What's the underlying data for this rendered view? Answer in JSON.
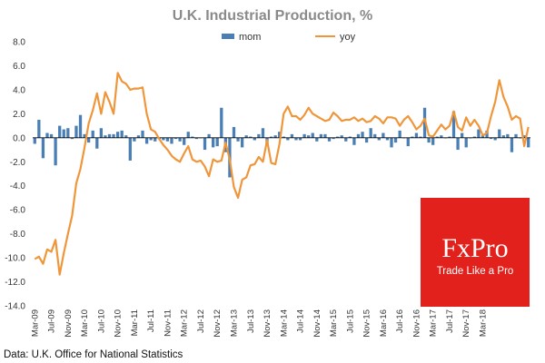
{
  "chart_data": {
    "type": "bar+line",
    "title": "U.K. Industrial Production, %",
    "source": "Data: U.K. Office for National Statistics",
    "ylim": [
      -14,
      8
    ],
    "yticks": [
      "8.0",
      "6.0",
      "4.0",
      "2.0",
      "0.0",
      "-2.0",
      "-4.0",
      "-6.0",
      "-8.0",
      "-10.0",
      "-12.0",
      "-14.0"
    ],
    "grid": false,
    "legend_position": "top-center",
    "x_start": "Mar-09",
    "xtick_labels": [
      "Mar-09",
      "Jul-09",
      "Nov-09",
      "Mar-10",
      "Jul-10",
      "Nov-10",
      "Mar-11",
      "Jul-11",
      "Nov-11",
      "Mar-12",
      "Jul-12",
      "Nov-12",
      "Mar-13",
      "Jul-13",
      "Nov-13",
      "Mar-14",
      "Jul-14",
      "Nov-14",
      "Mar-15",
      "Jul-15",
      "Nov-15",
      "Mar-16",
      "Jul-16",
      "Nov-16",
      "Mar-17",
      "Jul-17",
      "Nov-17",
      "Mar-18"
    ],
    "series": [
      {
        "name": "mom",
        "type": "bar",
        "color": "#4a7fb5",
        "values": [
          -0.5,
          1.5,
          -1.7,
          0.4,
          0.3,
          -2.3,
          1.0,
          0.7,
          0.8,
          -0.1,
          1.0,
          1.9,
          0.3,
          -0.4,
          0.6,
          -0.9,
          0.8,
          0.2,
          0.3,
          0.3,
          0.5,
          0.6,
          0.2,
          -1.9,
          -0.3,
          0.2,
          0.6,
          -0.5,
          -0.2,
          -0.3,
          -0.1,
          -0.2,
          -0.3,
          -0.5,
          -0.1,
          -0.3,
          -0.6,
          0.5,
          0.1,
          -0.1,
          0.0,
          -1.0,
          0.3,
          -0.8,
          -0.7,
          2.5,
          -1.2,
          -3.3,
          0.9,
          -0.3,
          -0.8,
          0.2,
          0.1,
          -0.2,
          0.3,
          0.8,
          -0.6,
          0.1,
          0.2,
          0.5,
          0.1,
          -0.2,
          0.3,
          -0.2,
          -0.2,
          0.3,
          0.2,
          0.4,
          -0.3,
          0.3,
          0.3,
          -0.3,
          -0.1,
          0.1,
          0.2,
          -0.3,
          0.1,
          -0.6,
          0.3,
          0.5,
          -0.4,
          0.8,
          0.3,
          -0.2,
          0.4,
          -0.2,
          -0.8,
          -0.4,
          0.6,
          0.0,
          -0.7,
          0.1,
          0.4,
          0.1,
          2.5,
          -0.4,
          -0.6,
          0.1,
          0.2,
          0.0,
          0.1,
          2.2,
          -1.0,
          0.4,
          -0.8,
          0.0,
          0.1,
          0.7,
          0.2,
          0.6,
          -0.1,
          -0.2,
          0.7,
          0.2,
          0.3,
          -1.2,
          0.3,
          0.0,
          0.2,
          -0.8
        ]
      },
      {
        "name": "yoy",
        "type": "line",
        "color": "#f0963a",
        "values": [
          -10.1,
          -9.9,
          -10.5,
          -9.3,
          -9.5,
          -8.5,
          -11.4,
          -9.6,
          -8.0,
          -6.5,
          -3.8,
          -2.6,
          -0.8,
          1.2,
          2.3,
          3.7,
          2.0,
          3.8,
          3.0,
          2.0,
          5.4,
          4.7,
          4.5,
          4.0,
          4.1,
          4.1,
          4.2,
          2.0,
          0.7,
          0.5,
          -0.1,
          -0.6,
          -1.0,
          -1.5,
          -1.8,
          -2.0,
          -1.3,
          -0.7,
          -1.8,
          -2.0,
          -1.9,
          -2.4,
          -3.2,
          -1.8,
          -2.0,
          -1.9,
          -0.4,
          -1.8,
          -4.1,
          -5.0,
          -3.5,
          -3.3,
          -2.3,
          -2.2,
          -1.6,
          -2.0,
          -0.2,
          -2.1,
          -2.2,
          -0.5,
          2.0,
          2.6,
          1.8,
          1.8,
          1.5,
          1.9,
          2.5,
          2.0,
          1.8,
          1.6,
          1.4,
          1.5,
          2.1,
          1.8,
          1.4,
          1.5,
          1.5,
          1.7,
          1.4,
          1.6,
          1.3,
          1.4,
          1.8,
          1.6,
          1.2,
          1.7,
          1.7,
          1.6,
          1.0,
          1.5,
          1.8,
          1.3,
          0.7,
          1.0,
          1.6,
          0.2,
          0.1,
          0.6,
          1.1,
          0.7,
          1.0,
          2.2,
          0.9,
          0.6,
          1.7,
          1.0,
          1.5,
          1.0,
          0.2,
          0.4,
          1.8,
          3.0,
          4.8,
          3.4,
          2.6,
          1.5,
          1.8,
          1.6,
          -0.7,
          0.9
        ]
      }
    ]
  },
  "brand": {
    "logo_text": "FxPro",
    "tagline": "Trade Like a Pro",
    "color": "#e2211c"
  }
}
